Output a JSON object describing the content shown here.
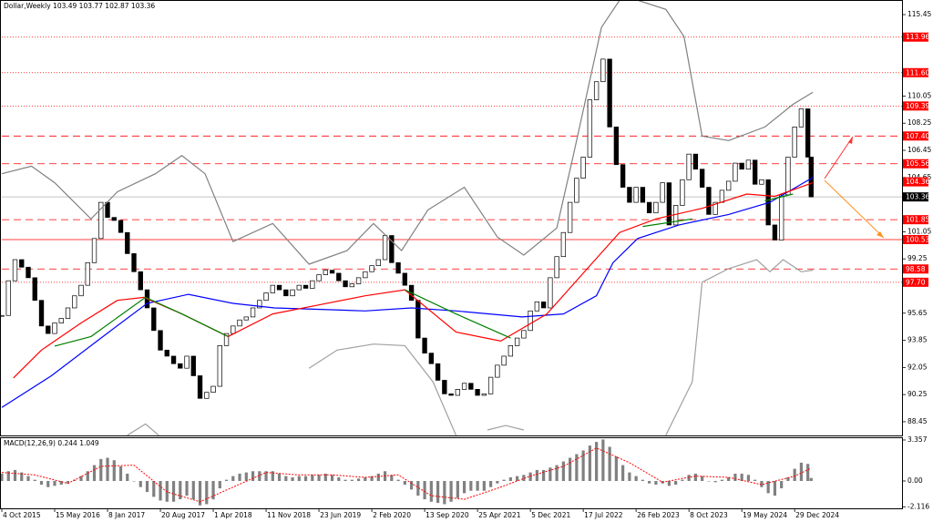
{
  "chart_data": [
    {
      "type": "candlestick",
      "title": "Dollar,Weekly 103.49 103.77 102.87 103.36",
      "xlim": [
        0,
        545
      ],
      "ylim": [
        87.54,
        116.42
      ],
      "yticks": [
        115.45,
        110.05,
        108.25,
        106.45,
        104.65,
        101.05,
        99.25,
        95.65,
        93.85,
        92.05,
        90.25,
        88.45
      ],
      "x": [
        0,
        4,
        8,
        12,
        16,
        20,
        24,
        28,
        32,
        36,
        40,
        44,
        48,
        52,
        56,
        60,
        64,
        68,
        72,
        76,
        80,
        84,
        88,
        92,
        96,
        100,
        104,
        108,
        112,
        116,
        120,
        124,
        128,
        132,
        136,
        140,
        144,
        148,
        152,
        156,
        160,
        164,
        168,
        172,
        176,
        180,
        184,
        188,
        192,
        196,
        200,
        204,
        208,
        212,
        216,
        220,
        224,
        228,
        232,
        236,
        240,
        244,
        248,
        252,
        256,
        260,
        264,
        268,
        272,
        276,
        280,
        284,
        288,
        292,
        296,
        300,
        304,
        308,
        312,
        316,
        320,
        324,
        328,
        332,
        336,
        340,
        344,
        348,
        352,
        356,
        360,
        364,
        368,
        372,
        376,
        380,
        384,
        388,
        392,
        396,
        400,
        404,
        408,
        412,
        416,
        420,
        424,
        428,
        432,
        436,
        440,
        444,
        448,
        452,
        456,
        460,
        464,
        468,
        472,
        476,
        480,
        484,
        488,
        490
      ],
      "values": [
        95.5,
        97.8,
        99.2,
        98.7,
        98.0,
        96.5,
        94.8,
        94.3,
        95.0,
        95.3,
        96.0,
        96.8,
        97.5,
        99.0,
        100.6,
        103.0,
        102.0,
        101.8,
        101.0,
        99.6,
        98.4,
        97.2,
        96.0,
        94.5,
        93.2,
        92.8,
        92.3,
        92.0,
        92.8,
        91.5,
        90.0,
        90.4,
        90.8,
        93.5,
        94.3,
        94.8,
        95.2,
        95.4,
        96.0,
        96.5,
        97.0,
        97.5,
        97.2,
        96.8,
        97.2,
        97.5,
        97.3,
        97.8,
        98.2,
        98.5,
        98.3,
        97.8,
        97.4,
        97.6,
        98.0,
        98.4,
        98.8,
        99.2,
        100.8,
        99.0,
        98.3,
        97.5,
        96.5,
        94.0,
        93.0,
        92.3,
        91.2,
        90.3,
        90.2,
        90.6,
        91.0,
        90.6,
        90.2,
        90.3,
        91.4,
        92.2,
        92.8,
        93.5,
        94.0,
        94.5,
        95.8,
        96.4,
        96.0,
        98.0,
        99.4,
        101.0,
        103.0,
        104.6,
        106.0,
        109.8,
        111.0,
        112.5,
        108.0,
        105.5,
        104.0,
        103.0,
        104.0,
        103.0,
        102.3,
        103.0,
        104.3,
        101.5,
        102.8,
        104.5,
        106.2,
        105.2,
        104.0,
        102.2,
        103.0,
        103.8,
        104.4,
        105.6,
        105.2,
        105.8,
        104.2,
        104.5,
        101.5,
        100.5,
        103.5,
        106.0,
        108.0,
        109.2,
        106.0,
        103.36
      ],
      "up_color": "#ffffff",
      "down_color": "#000000",
      "overlays": [
        {
          "color": "#808080",
          "x": [
            0,
            18,
            32,
            54,
            70,
            93,
            109,
            123,
            140,
            164,
            186,
            209,
            225,
            242,
            258,
            280,
            300,
            316,
            336,
            346,
            363,
            374,
            385,
            402,
            413,
            424,
            440,
            462,
            479,
            491
          ],
          "values": [
            104.9,
            105.4,
            104.3,
            101.9,
            103.7,
            104.9,
            106.1,
            104.9,
            100.4,
            101.6,
            98.9,
            99.8,
            101.6,
            99.8,
            102.5,
            104.0,
            100.7,
            99.5,
            101.3,
            106.1,
            114.6,
            116.4,
            116.4,
            115.8,
            114.0,
            107.4,
            107.1,
            108.0,
            109.5,
            110.3
          ]
        },
        {
          "color": "#a0a0a0",
          "x": [
            76,
            87,
            95,
            140,
            186,
            203,
            225,
            244,
            261,
            275,
            285,
            294,
            305,
            316,
            360,
            402,
            418,
            424,
            440,
            457,
            465,
            473,
            484,
            491
          ],
          "values": [
            87.55,
            88.3,
            87.55,
            null,
            92.0,
            93.2,
            93.6,
            93.5,
            91.1,
            87.55,
            null,
            87.9,
            88.2,
            87.9,
            null,
            87.55,
            91.1,
            97.7,
            98.6,
            99.2,
            98.4,
            99.2,
            98.4,
            98.5
          ]
        },
        {
          "color": "#0000ff",
          "x": [
            0,
            30,
            60,
            88,
            113,
            140,
            165,
            193,
            220,
            248,
            275,
            315,
            340,
            360,
            370,
            385,
            410,
            440,
            465,
            491
          ],
          "values": [
            89.4,
            91.5,
            94.0,
            96.3,
            96.9,
            96.3,
            96.0,
            95.9,
            95.8,
            96.0,
            95.8,
            95.4,
            95.6,
            96.8,
            99.0,
            100.6,
            101.5,
            102.2,
            103.0,
            104.65
          ]
        },
        {
          "color": "#ff0000",
          "x": [
            7,
            24,
            48,
            70,
            86,
            109,
            137,
            164,
            192,
            220,
            244,
            275,
            302,
            330,
            352,
            374,
            396,
            424,
            451,
            468,
            491
          ],
          "values": [
            91.35,
            93.2,
            95.0,
            96.5,
            96.7,
            95.6,
            94.1,
            95.6,
            96.2,
            96.8,
            97.2,
            94.4,
            93.8,
            95.6,
            98.3,
            101.0,
            101.9,
            102.6,
            103.55,
            103.4,
            104.3
          ]
        },
        {
          "color": "#008000",
          "x": [
            32,
            54,
            87,
            109,
            137,
            200,
            244,
            275,
            308,
            350,
            388,
            418,
            440,
            462,
            479
          ],
          "values": [
            93.47,
            94.1,
            96.7,
            95.6,
            94.1,
            null,
            97.2,
            95.6,
            94.0,
            null,
            101.4,
            101.9,
            null,
            103.1,
            103.55
          ]
        }
      ],
      "levels": [
        {
          "value": 113.96,
          "label": "113.96",
          "style": "dotted",
          "color": "#ff0000"
        },
        {
          "value": 111.6,
          "label": "111.60",
          "style": "dotted",
          "color": "#ff0000"
        },
        {
          "value": 109.39,
          "label": "109.39",
          "style": "dotted",
          "color": "#ff0000"
        },
        {
          "value": 107.4,
          "label": "107.40",
          "style": "dashed",
          "color": "#ff0000"
        },
        {
          "value": 105.56,
          "label": "105.56",
          "style": "dashed",
          "color": "#ff0000"
        },
        {
          "value": 104.36,
          "label": "104.36",
          "style": "none",
          "color": "#ff0000"
        },
        {
          "value": 103.36,
          "label": "103.36",
          "style": "solid",
          "color": "#000000"
        },
        {
          "value": 101.85,
          "label": "101.85",
          "style": "dashed",
          "color": "#ff0000"
        },
        {
          "value": 100.53,
          "label": "100.53",
          "style": "solid",
          "color": "#ff0000"
        },
        {
          "value": 98.58,
          "label": "98.58",
          "style": "dashed",
          "color": "#ff0000"
        },
        {
          "value": 97.7,
          "label": "97.70",
          "style": "dotted",
          "color": "#ff0000"
        }
      ]
    },
    {
      "type": "bar",
      "title": "MACD(12,26,9) 0.244 1.049",
      "xlim": [
        0,
        545
      ],
      "ylim": [
        -2.24,
        3.58
      ],
      "yticks": [
        3.357,
        {
          "value": 0,
          "label": "0.00"
        },
        -2.116
      ],
      "xticks": [
        {
          "value": 0,
          "label": "4 Oct 2015"
        },
        {
          "value": 32,
          "label": "15 May 2016"
        },
        {
          "value": 64,
          "label": "8 Jan 2017"
        },
        {
          "value": 96,
          "label": "20 Aug 2017"
        },
        {
          "value": 128,
          "label": "1 Apr 2018"
        },
        {
          "value": 160,
          "label": "11 Nov 2018"
        },
        {
          "value": 192,
          "label": "23 Jun 2019"
        },
        {
          "value": 224,
          "label": "2 Feb 2020"
        },
        {
          "value": 256,
          "label": "13 Sep 2020"
        },
        {
          "value": 288,
          "label": "25 Apr 2021"
        },
        {
          "value": 320,
          "label": "5 Dec 2021"
        },
        {
          "value": 352,
          "label": "17 Jul 2022"
        },
        {
          "value": 384,
          "label": "26 Feb 2023"
        },
        {
          "value": 416,
          "label": "8 Oct 2023"
        },
        {
          "value": 448,
          "label": "19 May 2024"
        },
        {
          "value": 480,
          "label": "29 Dec 2024"
        }
      ],
      "x": [
        0,
        4,
        8,
        12,
        16,
        20,
        24,
        28,
        32,
        36,
        40,
        44,
        48,
        52,
        56,
        60,
        64,
        68,
        72,
        76,
        80,
        84,
        88,
        92,
        96,
        100,
        104,
        108,
        112,
        116,
        120,
        124,
        128,
        132,
        136,
        140,
        144,
        148,
        152,
        156,
        160,
        164,
        168,
        172,
        176,
        180,
        184,
        188,
        192,
        196,
        200,
        204,
        208,
        212,
        216,
        220,
        224,
        228,
        232,
        236,
        240,
        244,
        248,
        252,
        256,
        260,
        264,
        268,
        272,
        276,
        280,
        284,
        288,
        292,
        296,
        300,
        304,
        308,
        312,
        316,
        320,
        324,
        328,
        332,
        336,
        340,
        344,
        348,
        352,
        356,
        360,
        364,
        368,
        372,
        376,
        380,
        384,
        388,
        392,
        396,
        400,
        404,
        408,
        412,
        416,
        420,
        424,
        428,
        432,
        436,
        440,
        444,
        448,
        452,
        456,
        460,
        464,
        468,
        472,
        476,
        480,
        484,
        488,
        490
      ],
      "values": [
        0.6,
        0.8,
        0.9,
        0.7,
        0.4,
        0.1,
        -0.3,
        -0.5,
        -0.4,
        -0.3,
        -0.2,
        0.1,
        0.4,
        0.8,
        1.3,
        1.8,
        1.9,
        1.7,
        1.2,
        0.6,
        0.0,
        -0.5,
        -0.9,
        -1.3,
        -1.6,
        -1.7,
        -1.7,
        -1.5,
        -1.2,
        -1.5,
        -2.0,
        -1.9,
        -1.5,
        -0.6,
        0.1,
        0.4,
        0.6,
        0.7,
        0.8,
        0.8,
        0.8,
        0.8,
        0.6,
        0.4,
        0.3,
        0.4,
        0.4,
        0.5,
        0.5,
        0.6,
        0.5,
        0.3,
        0.1,
        0.1,
        0.2,
        0.3,
        0.4,
        0.6,
        0.8,
        0.5,
        0.1,
        -0.3,
        -0.7,
        -1.2,
        -1.5,
        -1.7,
        -1.8,
        -1.9,
        -1.7,
        -1.4,
        -1.0,
        -0.8,
        -0.8,
        -0.8,
        -0.5,
        -0.2,
        0.1,
        0.3,
        0.4,
        0.5,
        0.7,
        0.9,
        0.9,
        1.1,
        1.3,
        1.6,
        1.9,
        2.2,
        2.5,
        2.9,
        3.2,
        3.4,
        2.8,
        2.0,
        1.3,
        0.7,
        0.4,
        0.1,
        -0.2,
        -0.3,
        -0.2,
        -0.4,
        -0.3,
        0.1,
        0.5,
        0.6,
        0.4,
        0.0,
        -0.1,
        0.1,
        0.3,
        0.6,
        0.6,
        0.5,
        0.1,
        -0.5,
        -1.0,
        -1.2,
        -0.6,
        0.3,
        1.0,
        1.5,
        1.4,
        0.244
      ],
      "color": "#808080",
      "signal": {
        "color": "#ff0000",
        "x": [
          0,
          20,
          40,
          60,
          80,
          100,
          120,
          140,
          160,
          180,
          200,
          220,
          240,
          260,
          280,
          300,
          320,
          340,
          360,
          380,
          400,
          420,
          440,
          460,
          480,
          490
        ],
        "values": [
          0.7,
          0.5,
          -0.2,
          1.2,
          1.3,
          -0.9,
          -1.7,
          -0.5,
          0.7,
          0.5,
          0.5,
          0.3,
          0.5,
          -1.2,
          -1.5,
          -0.6,
          0.4,
          1.2,
          2.7,
          1.5,
          -0.1,
          0.4,
          0.3,
          -0.3,
          0.4,
          1.049
        ]
      }
    }
  ]
}
